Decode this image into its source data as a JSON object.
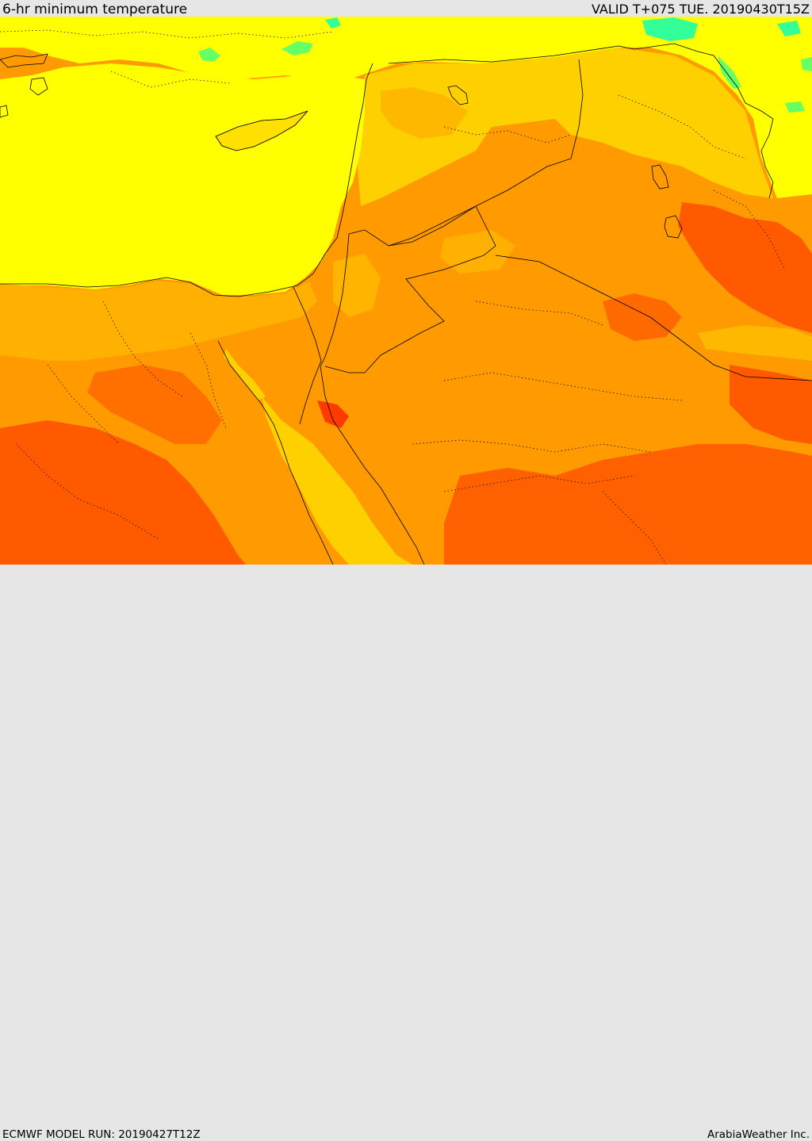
{
  "header": {
    "title": "6-hr minimum temperature",
    "valid": "VALID T+075 TUE. 20190430T15Z"
  },
  "footer": {
    "model_run": "ECMWF MODEL RUN: 20190427T12Z",
    "credit": "ArabiaWeather Inc."
  },
  "colors": {
    "sea_yellow": "#ffff00",
    "light_orange": "#ffd700",
    "orange": "#ffa500",
    "dark_orange": "#ff8c00",
    "red_orange": "#ff5500",
    "green": "#66ff66",
    "teal": "#33ff99",
    "border": "#000000"
  }
}
